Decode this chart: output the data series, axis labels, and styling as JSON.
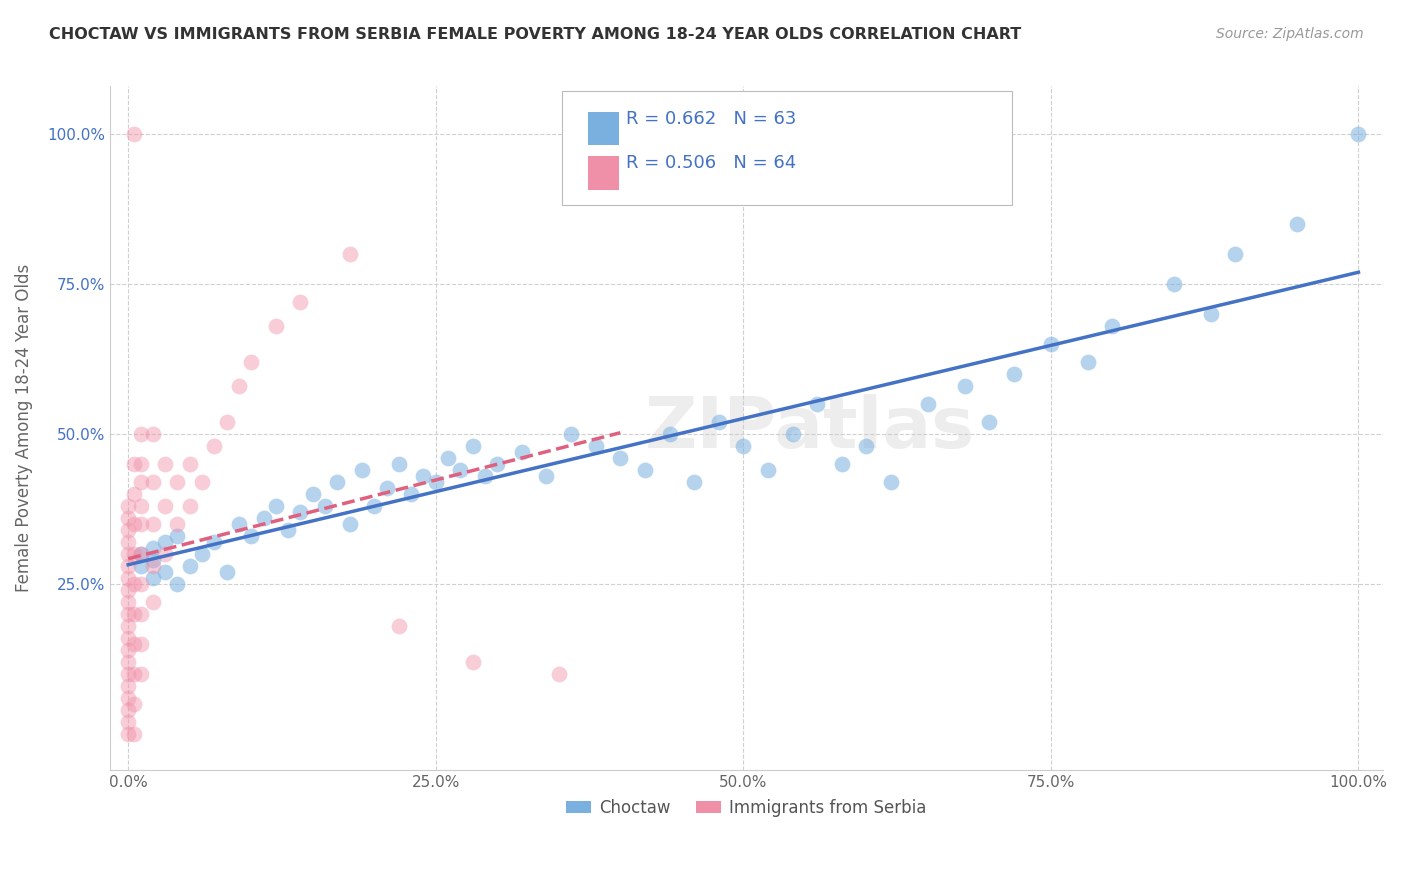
{
  "title": "CHOCTAW VS IMMIGRANTS FROM SERBIA FEMALE POVERTY AMONG 18-24 YEAR OLDS CORRELATION CHART",
  "source": "Source: ZipAtlas.com",
  "ylabel": "Female Poverty Among 18-24 Year Olds",
  "xtick_labels": [
    "0.0%",
    "25.0%",
    "50.0%",
    "75.0%",
    "100.0%"
  ],
  "xtick_vals": [
    0.0,
    0.25,
    0.5,
    0.75,
    1.0
  ],
  "ytick_labels": [
    "25.0%",
    "50.0%",
    "75.0%",
    "100.0%"
  ],
  "ytick_vals": [
    0.25,
    0.5,
    0.75,
    1.0
  ],
  "watermark": "ZIPatlas",
  "legend_bottom": [
    "Choctaw",
    "Immigrants from Serbia"
  ],
  "choctaw_color": "#7ab0e0",
  "serbia_color": "#f090a8",
  "choctaw_line_color": "#4472c4",
  "serbia_line_color": "#e06080",
  "choctaw_R": 0.662,
  "choctaw_N": 63,
  "serbia_R": 0.506,
  "serbia_N": 64,
  "choctaw_x": [
    0.01,
    0.01,
    0.02,
    0.02,
    0.02,
    0.03,
    0.03,
    0.04,
    0.04,
    0.05,
    0.06,
    0.07,
    0.08,
    0.09,
    0.1,
    0.11,
    0.12,
    0.13,
    0.14,
    0.15,
    0.16,
    0.17,
    0.18,
    0.19,
    0.2,
    0.21,
    0.22,
    0.23,
    0.24,
    0.25,
    0.26,
    0.27,
    0.28,
    0.29,
    0.3,
    0.32,
    0.34,
    0.36,
    0.38,
    0.4,
    0.42,
    0.44,
    0.46,
    0.48,
    0.5,
    0.52,
    0.54,
    0.56,
    0.58,
    0.6,
    0.62,
    0.65,
    0.68,
    0.7,
    0.72,
    0.75,
    0.78,
    0.8,
    0.85,
    0.88,
    0.9,
    0.95,
    1.0
  ],
  "choctaw_y": [
    0.28,
    0.3,
    0.26,
    0.29,
    0.31,
    0.27,
    0.32,
    0.25,
    0.33,
    0.28,
    0.3,
    0.32,
    0.27,
    0.35,
    0.33,
    0.36,
    0.38,
    0.34,
    0.37,
    0.4,
    0.38,
    0.42,
    0.35,
    0.44,
    0.38,
    0.41,
    0.45,
    0.4,
    0.43,
    0.42,
    0.46,
    0.44,
    0.48,
    0.43,
    0.45,
    0.47,
    0.43,
    0.5,
    0.48,
    0.46,
    0.44,
    0.5,
    0.42,
    0.52,
    0.48,
    0.44,
    0.5,
    0.55,
    0.45,
    0.48,
    0.42,
    0.55,
    0.58,
    0.52,
    0.6,
    0.65,
    0.62,
    0.68,
    0.75,
    0.7,
    0.8,
    0.85,
    1.0
  ],
  "serbia_x": [
    0.0,
    0.0,
    0.0,
    0.0,
    0.0,
    0.0,
    0.0,
    0.0,
    0.0,
    0.0,
    0.0,
    0.0,
    0.0,
    0.0,
    0.0,
    0.0,
    0.0,
    0.0,
    0.0,
    0.0,
    0.005,
    0.005,
    0.005,
    0.005,
    0.005,
    0.005,
    0.005,
    0.005,
    0.005,
    0.005,
    0.01,
    0.01,
    0.01,
    0.01,
    0.01,
    0.01,
    0.01,
    0.01,
    0.01,
    0.01,
    0.02,
    0.02,
    0.02,
    0.02,
    0.02,
    0.03,
    0.03,
    0.03,
    0.04,
    0.04,
    0.05,
    0.05,
    0.06,
    0.07,
    0.08,
    0.09,
    0.1,
    0.12,
    0.14,
    0.18,
    0.22,
    0.28,
    0.35,
    0.005
  ],
  "serbia_y": [
    0.0,
    0.02,
    0.04,
    0.06,
    0.08,
    0.1,
    0.12,
    0.14,
    0.16,
    0.18,
    0.2,
    0.22,
    0.24,
    0.26,
    0.28,
    0.3,
    0.32,
    0.34,
    0.36,
    0.38,
    0.0,
    0.05,
    0.1,
    0.15,
    0.2,
    0.25,
    0.3,
    0.35,
    0.4,
    0.45,
    0.1,
    0.15,
    0.2,
    0.25,
    0.3,
    0.35,
    0.38,
    0.42,
    0.45,
    0.5,
    0.22,
    0.28,
    0.35,
    0.42,
    0.5,
    0.3,
    0.38,
    0.45,
    0.35,
    0.42,
    0.38,
    0.45,
    0.42,
    0.48,
    0.52,
    0.58,
    0.62,
    0.68,
    0.72,
    0.8,
    0.18,
    0.12,
    0.1,
    1.0
  ]
}
